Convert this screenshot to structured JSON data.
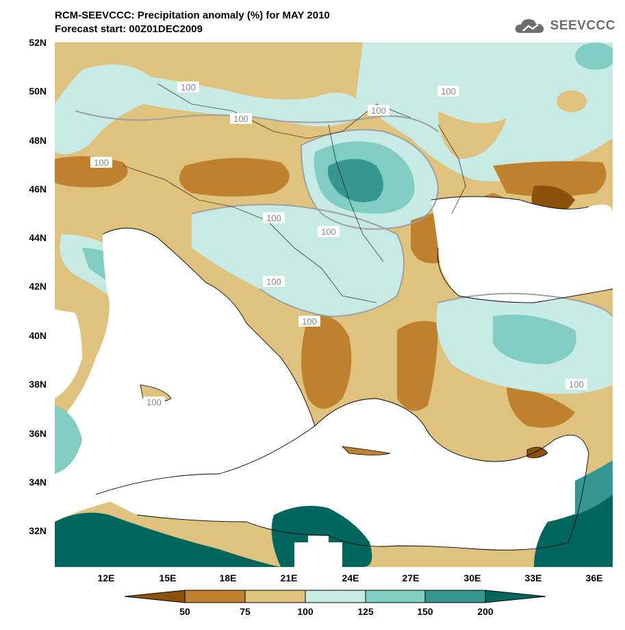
{
  "header": {
    "title_line1": "RCM-SEEVCCC: Precipitation anomaly (%) for MAY 2010",
    "title_line2": "Forecast start: 00Z01DEC2009",
    "logo_text": "SEEVCCC"
  },
  "map": {
    "lat_labels": [
      "52N",
      "50N",
      "48N",
      "46N",
      "44N",
      "42N",
      "40N",
      "38N",
      "36N",
      "34N",
      "32N"
    ],
    "lon_labels": [
      "12E",
      "15E",
      "18E",
      "21E",
      "24E",
      "27E",
      "30E",
      "33E",
      "36E"
    ],
    "contour_label": "100",
    "palette": {
      "below_50": "#8c510a",
      "50_75": "#bf812d",
      "75_100": "#dfc27d",
      "100_125": "#c7eae5",
      "125_150": "#80cdc1",
      "150_200": "#35978f",
      "above_200": "#01665e",
      "sea": "#ffffff",
      "coast": "#000000",
      "contour": "#a0a0a0"
    }
  },
  "colorbar": {
    "tick_labels": [
      "50",
      "75",
      "100",
      "125",
      "150",
      "200"
    ],
    "colors": [
      "#bf812d",
      "#dfc27d",
      "#c7eae5",
      "#80cdc1",
      "#35978f"
    ],
    "left_color": "#8c510a",
    "right_color": "#01665e"
  }
}
